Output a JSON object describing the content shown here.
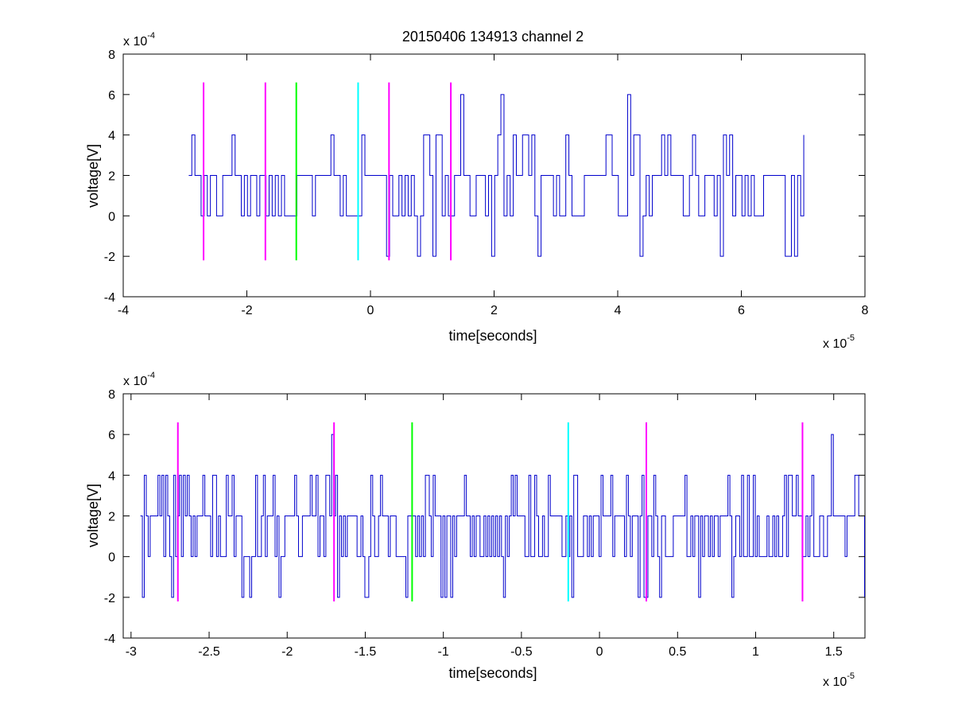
{
  "chart_data": [
    {
      "type": "line",
      "title": "20150406 134913 channel 2",
      "xlabel": "time[seconds]",
      "ylabel": "voltage[V]",
      "x_multiplier": {
        "base": "x 10",
        "exponent": "-5"
      },
      "y_multiplier": {
        "base": "x 10",
        "exponent": "-4"
      },
      "xlim": [
        -4,
        8
      ],
      "ylim": [
        -4,
        8
      ],
      "x_ticks": [
        -4,
        -2,
        0,
        2,
        4,
        6,
        8
      ],
      "x_tick_labels": [
        "-4",
        "-2",
        "0",
        "2",
        "4",
        "6",
        "8"
      ],
      "y_ticks": [
        -4,
        -2,
        0,
        2,
        4,
        6,
        8
      ],
      "y_tick_labels": [
        "-4",
        "-2",
        "0",
        "2",
        "4",
        "6",
        "8"
      ],
      "signal": {
        "color": "#0000cc",
        "x_start": -2.94,
        "x_end": 7.02,
        "step": 0.05,
        "levels": [
          0,
          2,
          4,
          -2,
          6
        ],
        "seed": 17,
        "peaks": [
          [
            1.48,
            6
          ],
          [
            2.12,
            6
          ],
          [
            4.18,
            6
          ]
        ]
      },
      "markers": [
        {
          "x": -2.7,
          "y0": -2.2,
          "y1": 6.6,
          "color": "#ff00ff"
        },
        {
          "x": -1.7,
          "y0": -2.2,
          "y1": 6.6,
          "color": "#ff00ff"
        },
        {
          "x": -1.2,
          "y0": -2.2,
          "y1": 6.6,
          "color": "#00ff00"
        },
        {
          "x": -0.2,
          "y0": -2.2,
          "y1": 6.6,
          "color": "#00ffff"
        },
        {
          "x": 0.3,
          "y0": -2.2,
          "y1": 6.6,
          "color": "#ff00ff"
        },
        {
          "x": 1.3,
          "y0": -2.2,
          "y1": 6.6,
          "color": "#ff00ff"
        }
      ]
    },
    {
      "type": "line",
      "title": "",
      "xlabel": "time[seconds]",
      "ylabel": "voltage[V]",
      "x_multiplier": {
        "base": "x 10",
        "exponent": "-5"
      },
      "y_multiplier": {
        "base": "x 10",
        "exponent": "-4"
      },
      "xlim": [
        -3.05,
        1.7
      ],
      "ylim": [
        -4,
        8
      ],
      "x_ticks": [
        -3,
        -2.5,
        -2,
        -1.5,
        -1,
        -0.5,
        0,
        0.5,
        1,
        1.5
      ],
      "x_tick_labels": [
        "-3",
        "-2.5",
        "-2",
        "-1.5",
        "-1",
        "-0.5",
        "0",
        "0.5",
        "1",
        "1.5"
      ],
      "y_ticks": [
        -4,
        -2,
        0,
        2,
        4,
        6,
        8
      ],
      "y_tick_labels": [
        "-4",
        "-2",
        "0",
        "2",
        "4",
        "6",
        "8"
      ],
      "signal": {
        "color": "#0000cc",
        "x_start": -2.94,
        "x_end": 1.7,
        "step": 0.0125,
        "levels": [
          0,
          2,
          4,
          -2,
          6
        ],
        "seed": 41,
        "peaks": [
          [
            -1.72,
            6
          ],
          [
            1.49,
            6
          ]
        ]
      },
      "markers": [
        {
          "x": -2.7,
          "y0": -2.2,
          "y1": 6.6,
          "color": "#ff00ff"
        },
        {
          "x": -1.7,
          "y0": -2.2,
          "y1": 6.6,
          "color": "#ff00ff"
        },
        {
          "x": -1.2,
          "y0": -2.2,
          "y1": 6.6,
          "color": "#00ff00"
        },
        {
          "x": -0.2,
          "y0": -2.2,
          "y1": 6.6,
          "color": "#00ffff"
        },
        {
          "x": 0.3,
          "y0": -2.2,
          "y1": 6.6,
          "color": "#ff00ff"
        },
        {
          "x": 1.3,
          "y0": -2.2,
          "y1": 6.6,
          "color": "#ff00ff"
        }
      ]
    }
  ]
}
